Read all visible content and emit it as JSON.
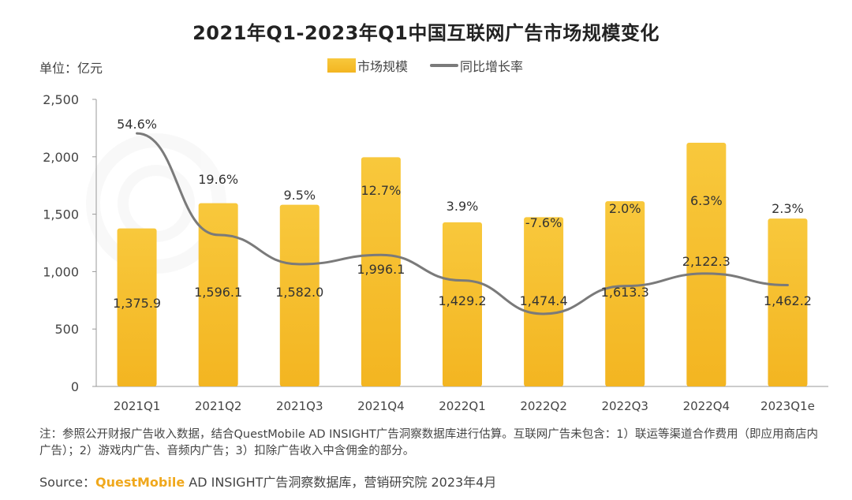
{
  "chart_data": {
    "type": "bar",
    "title": "2021年Q1-2023年Q1中国互联网广告市场规模变化",
    "unit_label": "单位：亿元",
    "categories": [
      "2021Q1",
      "2021Q2",
      "2021Q3",
      "2021Q4",
      "2022Q1",
      "2022Q2",
      "2022Q3",
      "2022Q4",
      "2023Q1e"
    ],
    "series": [
      {
        "name": "市场规模",
        "type": "bar",
        "axis": "left",
        "values": [
          1375.9,
          1596.1,
          1582.0,
          1996.1,
          1429.2,
          1474.4,
          1613.3,
          2122.3,
          1462.2
        ],
        "value_labels": [
          "1,375.9",
          "1,596.1",
          "1,582.0",
          "1,996.1",
          "1,429.2",
          "1,474.4",
          "1,613.3",
          "2,122.3",
          "1,462.2"
        ]
      },
      {
        "name": "同比增长率",
        "type": "line",
        "axis": "right-hidden",
        "values": [
          54.6,
          19.6,
          9.5,
          12.7,
          3.9,
          -7.6,
          2.0,
          6.3,
          2.3
        ],
        "value_labels": [
          "54.6%",
          "19.6%",
          "9.5%",
          "12.7%",
          "3.9%",
          "-7.6%",
          "2.0%",
          "6.3%",
          "2.3%"
        ]
      }
    ],
    "ylim": [
      0,
      2500
    ],
    "yticks": [
      0,
      500,
      1000,
      1500,
      2000,
      2500
    ],
    "ytick_labels": [
      "0",
      "500",
      "1,000",
      "1,500",
      "2,000",
      "2,500"
    ],
    "legend": "top-center",
    "grid": false
  },
  "colors": {
    "bar_top": "#f8c83c",
    "bar_bottom": "#f3b521",
    "line": "#7a7a7a",
    "brand": "#f0a81c"
  },
  "note": "注：参照公开财报广告收入数据，结合QuestMobile AD INSIGHT广告洞察数据库进行估算。互联网广告未包含：1）联运等渠道合作费用（即应用商店内广告）；2）游戏内广告、音频内广告；3）扣除广告收入中含佣金的部分。",
  "source": {
    "prefix": "Source：",
    "brand": "QuestMobile",
    "rest": " AD INSIGHT广告洞察数据库，营销研究院 2023年4月"
  }
}
